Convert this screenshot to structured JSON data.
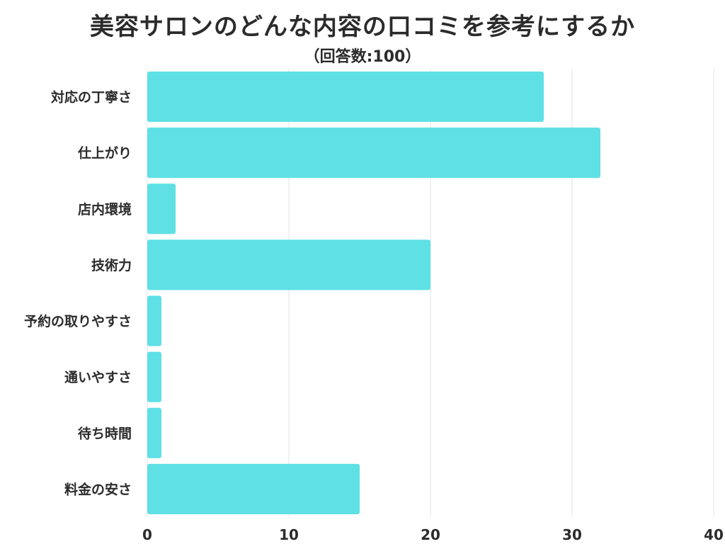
{
  "chart_data": {
    "type": "bar",
    "orientation": "horizontal",
    "title": "美容サロンのどんな内容の口コミを参考にするか",
    "subtitle": "（回答数:100）",
    "categories": [
      "対応の丁寧さ",
      "仕上がり",
      "店内環境",
      "技術力",
      "予約の取りやすさ",
      "通いやすさ",
      "待ち時間",
      "料金の安さ"
    ],
    "values": [
      28,
      32,
      2,
      20,
      1,
      1,
      1,
      15
    ],
    "xlim": [
      0,
      40
    ],
    "xticks": [
      "0",
      "10",
      "20",
      "30",
      "40"
    ],
    "grid": true,
    "bar_color": "#5ee0e5",
    "grid_color": "#e3e3e3"
  }
}
